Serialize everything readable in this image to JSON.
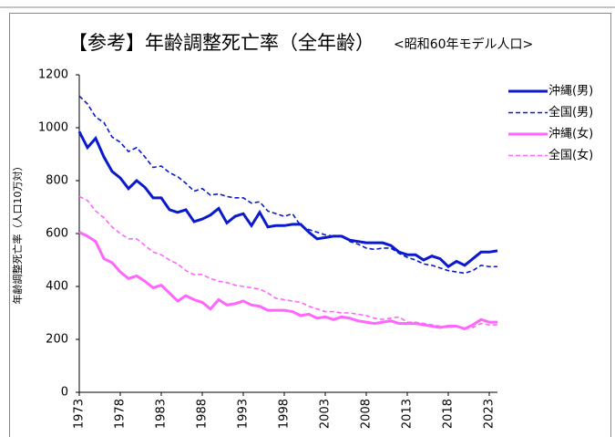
{
  "chart_data": {
    "type": "line",
    "title": "【参考】年齢調整死亡率（全年齢）",
    "subtitle": "<昭和60年モデル人口>",
    "y_label": "年齢調整死亡率（人口10万対）",
    "x": [
      1973,
      1974,
      1975,
      1976,
      1977,
      1978,
      1979,
      1980,
      1981,
      1982,
      1983,
      1984,
      1985,
      1986,
      1987,
      1988,
      1989,
      1990,
      1991,
      1992,
      1993,
      1994,
      1995,
      1996,
      1997,
      1998,
      1999,
      2000,
      2001,
      2002,
      2003,
      2004,
      2005,
      2006,
      2007,
      2008,
      2009,
      2010,
      2011,
      2012,
      2013,
      2014,
      2015,
      2016,
      2017,
      2018,
      2019,
      2020,
      2021,
      2022,
      2023,
      2024
    ],
    "xlim": [
      1973,
      2024
    ],
    "xticks": [
      1973,
      1978,
      1983,
      1988,
      1993,
      1998,
      2003,
      2008,
      2013,
      2018,
      2023
    ],
    "ylim": [
      0,
      1200
    ],
    "yticks": [
      0,
      200,
      400,
      600,
      800,
      1000,
      1200
    ],
    "legend": "right",
    "series": [
      {
        "name": "沖縄(男)",
        "color": "#0a1acc",
        "dashed": false,
        "values": [
          985,
          925,
          960,
          890,
          835,
          810,
          770,
          800,
          775,
          735,
          735,
          690,
          680,
          690,
          645,
          655,
          670,
          695,
          640,
          665,
          675,
          630,
          680,
          625,
          630,
          630,
          635,
          635,
          605,
          580,
          585,
          590,
          590,
          575,
          570,
          565,
          565,
          565,
          555,
          530,
          520,
          520,
          500,
          515,
          505,
          475,
          495,
          480,
          505,
          530,
          530,
          535
        ]
      },
      {
        "name": "全国(男)",
        "color": "#0a1acc",
        "dashed": true,
        "values": [
          1120,
          1090,
          1040,
          1020,
          965,
          945,
          910,
          925,
          890,
          850,
          855,
          830,
          815,
          790,
          760,
          770,
          745,
          750,
          740,
          735,
          735,
          715,
          720,
          685,
          675,
          665,
          675,
          630,
          615,
          605,
          595,
          590,
          590,
          570,
          560,
          545,
          540,
          545,
          545,
          525,
          510,
          500,
          485,
          480,
          470,
          460,
          455,
          450,
          460,
          480,
          475,
          475
        ]
      },
      {
        "name": "沖縄(女)",
        "color": "#ff66ff",
        "dashed": false,
        "values": [
          605,
          590,
          570,
          505,
          490,
          455,
          430,
          440,
          420,
          395,
          405,
          375,
          345,
          365,
          350,
          340,
          315,
          350,
          330,
          335,
          345,
          330,
          325,
          310,
          310,
          310,
          305,
          290,
          295,
          280,
          285,
          275,
          285,
          280,
          270,
          265,
          260,
          265,
          270,
          260,
          260,
          260,
          255,
          250,
          245,
          250,
          250,
          240,
          255,
          275,
          265,
          265
        ]
      },
      {
        "name": "全国(女)",
        "color": "#ff66ff",
        "dashed": true,
        "values": [
          740,
          725,
          685,
          660,
          625,
          600,
          580,
          580,
          555,
          530,
          520,
          500,
          485,
          460,
          445,
          445,
          430,
          420,
          415,
          405,
          400,
          395,
          390,
          375,
          355,
          350,
          345,
          340,
          325,
          315,
          305,
          305,
          300,
          300,
          295,
          290,
          280,
          275,
          280,
          285,
          265,
          265,
          260,
          255,
          250,
          245,
          250,
          240,
          245,
          260,
          255,
          255
        ]
      }
    ]
  }
}
